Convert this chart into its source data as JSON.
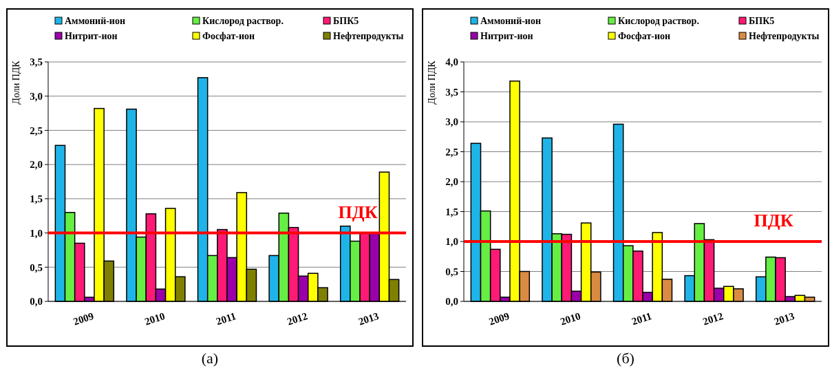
{
  "chart_data": [
    {
      "type": "bar",
      "ylabel": "Доли ПДК",
      "categories": [
        "2009",
        "2010",
        "2011",
        "2012",
        "2013"
      ],
      "series": [
        {
          "name": "Аммоний-ион",
          "color": "#1fb4e8",
          "values": [
            2.28,
            2.81,
            3.27,
            0.67,
            1.1
          ]
        },
        {
          "name": "Кислород раствор.",
          "color": "#66ee44",
          "values": [
            1.3,
            0.94,
            0.67,
            1.29,
            0.88
          ]
        },
        {
          "name": "БПК5",
          "color": "#ff1a75",
          "values": [
            0.85,
            1.28,
            1.05,
            1.08,
            1.0
          ]
        },
        {
          "name": "Нитрит-ион",
          "color": "#9900aa",
          "values": [
            0.06,
            0.18,
            0.64,
            0.37,
            1.0
          ]
        },
        {
          "name": "Фосфат-ион",
          "color": "#ffff00",
          "values": [
            2.82,
            1.36,
            1.59,
            0.41,
            1.89
          ]
        },
        {
          "name": "Нефтепродукты",
          "color": "#808000",
          "values": [
            0.59,
            0.36,
            0.47,
            0.2,
            0.32
          ]
        }
      ],
      "ylim": [
        0,
        3.5
      ],
      "yticks": [
        {
          "value": 0,
          "label": "0,0"
        },
        {
          "value": 0.5,
          "label": "0,5"
        },
        {
          "value": 1,
          "label": "1,0"
        },
        {
          "value": 1.5,
          "label": "1,5"
        },
        {
          "value": 2,
          "label": "2,0"
        },
        {
          "value": 2.5,
          "label": "2,5"
        },
        {
          "value": 3,
          "label": "3,0"
        },
        {
          "value": 3.5,
          "label": "3,5"
        }
      ],
      "grid": "y",
      "legend": "top",
      "ref_lines": [
        {
          "axis": "y",
          "value": 1,
          "label": "ПДК",
          "color": "#ff0000"
        }
      ],
      "annotations": [
        "(а)"
      ]
    },
    {
      "type": "bar",
      "ylabel": "Доли ПДК",
      "categories": [
        "2009",
        "2010",
        "2011",
        "2012",
        "2013"
      ],
      "series": [
        {
          "name": "Аммоний-ион",
          "color": "#1fb4e8",
          "values": [
            2.64,
            2.73,
            2.96,
            0.43,
            0.41
          ]
        },
        {
          "name": "Кислород раствор.",
          "color": "#66ee44",
          "values": [
            1.51,
            1.13,
            0.93,
            1.3,
            0.74
          ]
        },
        {
          "name": "БПК5",
          "color": "#ff1a75",
          "values": [
            0.87,
            1.12,
            0.84,
            1.03,
            0.73
          ]
        },
        {
          "name": "Нитрит-ион",
          "color": "#9900aa",
          "values": [
            0.07,
            0.17,
            0.15,
            0.22,
            0.08
          ]
        },
        {
          "name": "Фосфат-ион",
          "color": "#ffff00",
          "values": [
            3.68,
            1.31,
            1.15,
            0.25,
            0.1
          ]
        },
        {
          "name": "Нефтепродукты",
          "color": "#d98b43",
          "values": [
            0.5,
            0.49,
            0.37,
            0.21,
            0.07
          ]
        }
      ],
      "ylim": [
        0,
        4
      ],
      "yticks": [
        {
          "value": 0,
          "label": "0,0"
        },
        {
          "value": 0.5,
          "label": "0,5"
        },
        {
          "value": 1,
          "label": "1,0"
        },
        {
          "value": 1.5,
          "label": "1,5"
        },
        {
          "value": 2,
          "label": "2,0"
        },
        {
          "value": 2.5,
          "label": "2,5"
        },
        {
          "value": 3,
          "label": "3,0"
        },
        {
          "value": 3.5,
          "label": "3,5"
        },
        {
          "value": 4,
          "label": "4,0"
        }
      ],
      "grid": "y",
      "legend": "top",
      "ref_lines": [
        {
          "axis": "y",
          "value": 1,
          "label": "ПДК",
          "color": "#ff0000"
        }
      ],
      "annotations": [
        "(б)"
      ]
    }
  ]
}
